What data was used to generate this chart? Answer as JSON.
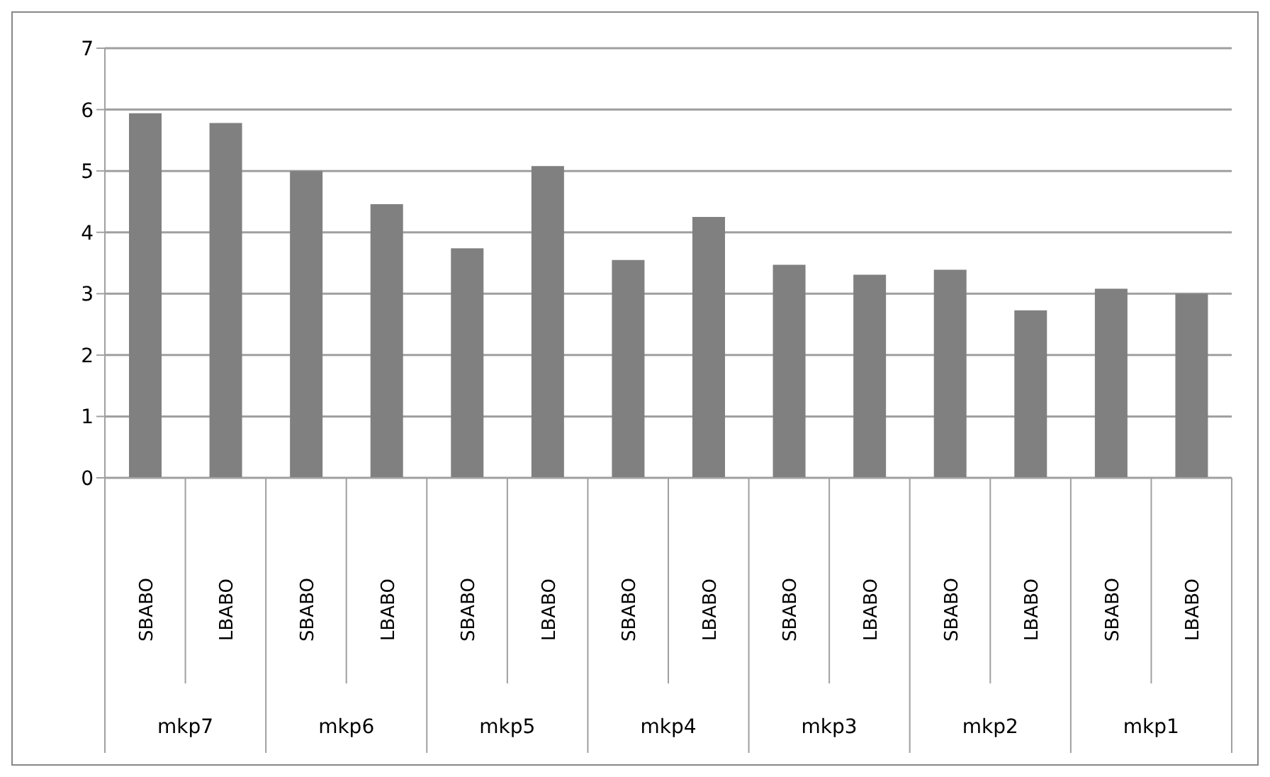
{
  "chart_data": {
    "type": "bar",
    "categories": [
      "SBABO",
      "LBABO",
      "SBABO",
      "LBABO",
      "SBABO",
      "LBABO",
      "SBABO",
      "LBABO",
      "SBABO",
      "LBABO",
      "SBABO",
      "LBABO",
      "SBABO",
      "LBABO"
    ],
    "values": [
      5.94,
      5.78,
      5.0,
      4.46,
      3.74,
      5.08,
      3.55,
      4.25,
      3.47,
      3.31,
      3.39,
      2.73,
      3.08,
      3.0
    ],
    "color": "#808080",
    "annotations": [
      "mkp7",
      "mkp6",
      "mkp5",
      "mkp4",
      "mkp3",
      "mkp2",
      "mkp1"
    ],
    "ylim": [
      0,
      7
    ],
    "yticks": [
      0,
      1,
      2,
      3,
      4,
      5,
      6,
      7
    ],
    "grid": "y",
    "legend": false
  }
}
